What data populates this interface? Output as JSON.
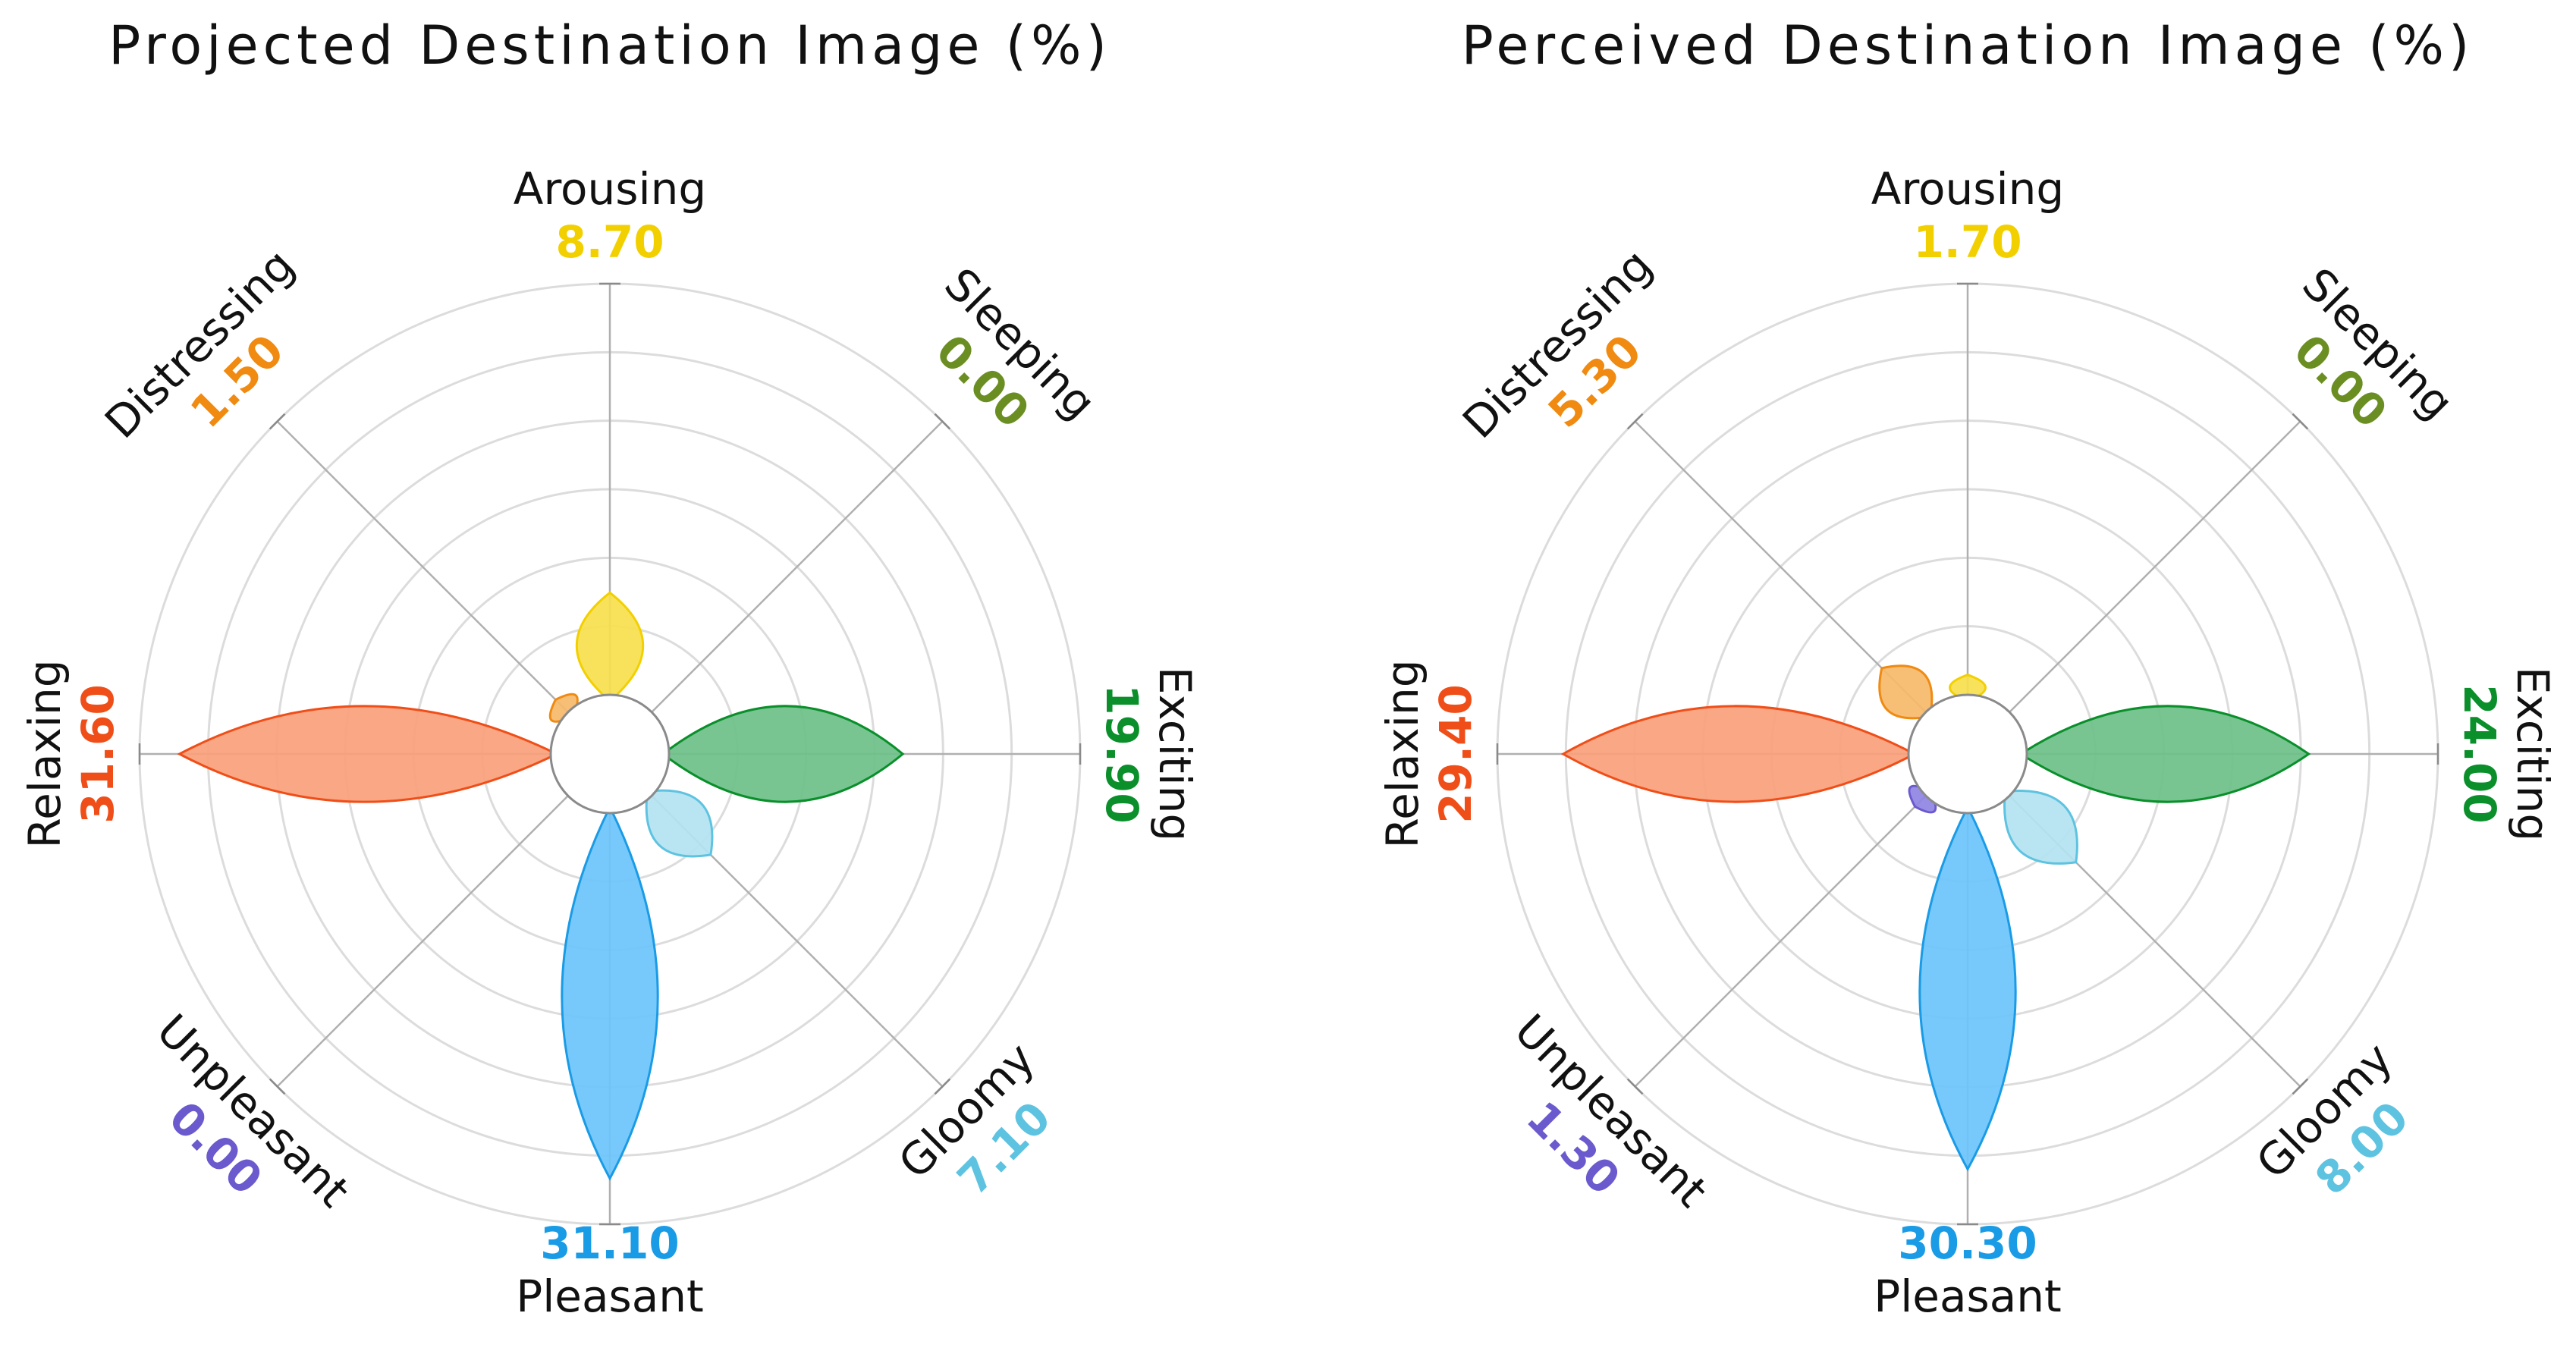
{
  "chart_data": [
    {
      "type": "polar-area",
      "title": "Projected Destination Image (%)",
      "rlim": [
        0,
        35
      ],
      "grid": true,
      "categories": [
        {
          "name": "Arousing",
          "value": 8.7,
          "label": "8.70",
          "color": "#f2d000",
          "fill": "#f7e04d"
        },
        {
          "name": "Sleeping",
          "value": 0.0,
          "label": "0.00",
          "color": "#6b8e23",
          "fill": "#9bbf55"
        },
        {
          "name": "Exciting",
          "value": 19.9,
          "label": "19.90",
          "color": "#0a8f2b",
          "fill": "#6cc089"
        },
        {
          "name": "Gloomy",
          "value": 7.1,
          "label": "7.10",
          "color": "#5ec3e0",
          "fill": "#b3e3f1"
        },
        {
          "name": "Pleasant",
          "value": 31.1,
          "label": "31.10",
          "color": "#1a9be6",
          "fill": "#6dc4fb"
        },
        {
          "name": "Unpleasant",
          "value": 0.0,
          "label": "0.00",
          "color": "#6a5acd",
          "fill": "#8f84e3"
        },
        {
          "name": "Relaxing",
          "value": 31.6,
          "label": "31.60",
          "color": "#f04e18",
          "fill": "#f9a07a"
        },
        {
          "name": "Distressing",
          "value": 1.5,
          "label": "1.50",
          "color": "#f08a10",
          "fill": "#f6b86a"
        }
      ]
    },
    {
      "type": "polar-area",
      "title": "Perceived Destination Image (%)",
      "rlim": [
        0,
        35
      ],
      "grid": true,
      "categories": [
        {
          "name": "Arousing",
          "value": 1.7,
          "label": "1.70",
          "color": "#f2d000",
          "fill": "#f7e04d"
        },
        {
          "name": "Sleeping",
          "value": 0.0,
          "label": "0.00",
          "color": "#6b8e23",
          "fill": "#9bbf55"
        },
        {
          "name": "Exciting",
          "value": 24.0,
          "label": "24.00",
          "color": "#0a8f2b",
          "fill": "#6cc089"
        },
        {
          "name": "Gloomy",
          "value": 8.0,
          "label": "8.00",
          "color": "#5ec3e0",
          "fill": "#b3e3f1"
        },
        {
          "name": "Pleasant",
          "value": 30.3,
          "label": "30.30",
          "color": "#1a9be6",
          "fill": "#6dc4fb"
        },
        {
          "name": "Unpleasant",
          "value": 1.3,
          "label": "1.30",
          "color": "#6a5acd",
          "fill": "#8f84e3"
        },
        {
          "name": "Relaxing",
          "value": 29.4,
          "label": "29.40",
          "color": "#f04e18",
          "fill": "#f9a07a"
        },
        {
          "name": "Distressing",
          "value": 5.3,
          "label": "5.30",
          "color": "#f08a10",
          "fill": "#f6b86a"
        }
      ]
    }
  ]
}
